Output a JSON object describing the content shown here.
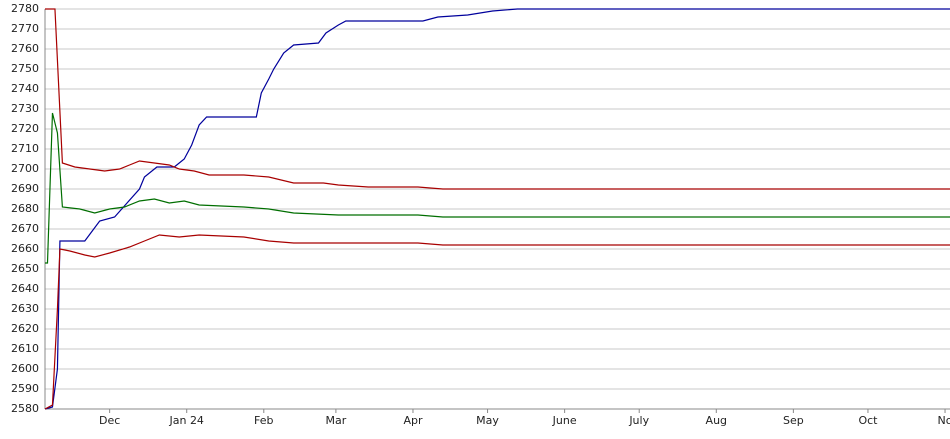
{
  "chart_data": {
    "type": "line",
    "xlim": [
      0,
      364
    ],
    "xticks": [
      {
        "value": 26,
        "label": "Dec"
      },
      {
        "value": 57,
        "label": "Jan 24"
      },
      {
        "value": 88,
        "label": "Feb"
      },
      {
        "value": 117,
        "label": "Mar"
      },
      {
        "value": 148,
        "label": "Apr"
      },
      {
        "value": 178,
        "label": "May"
      },
      {
        "value": 209,
        "label": "June"
      },
      {
        "value": 239,
        "label": "July"
      },
      {
        "value": 270,
        "label": "Aug"
      },
      {
        "value": 301,
        "label": "Sep"
      },
      {
        "value": 331,
        "label": "Oct"
      },
      {
        "value": 362,
        "label": "No"
      }
    ],
    "ylim": [
      2580,
      2780
    ],
    "yticks": [
      2580,
      2590,
      2600,
      2610,
      2620,
      2630,
      2640,
      2650,
      2660,
      2670,
      2680,
      2690,
      2700,
      2710,
      2720,
      2730,
      2740,
      2750,
      2760,
      2770,
      2780
    ],
    "grid": true,
    "series": [
      {
        "color": "#00009c",
        "x": [
          0,
          3,
          5,
          6,
          16,
          22,
          28,
          33,
          38,
          40,
          45,
          52,
          56,
          59,
          62,
          65,
          85,
          87,
          90,
          92,
          96,
          100,
          110,
          113,
          118,
          121,
          152,
          158,
          170,
          180,
          190,
          364
        ],
        "values": [
          2580,
          2581,
          2600,
          2664,
          2664,
          2674,
          2676,
          2683,
          2690,
          2696,
          2701,
          2701,
          2705,
          2712,
          2722,
          2726,
          2726,
          2738,
          2745,
          2750,
          2758,
          2762,
          2763,
          2768,
          2772,
          2774,
          2774,
          2776,
          2777,
          2779,
          2780,
          2780
        ]
      },
      {
        "color": "#a80000",
        "x": [
          0,
          4,
          7,
          12,
          18,
          24,
          30,
          34,
          38,
          44,
          50,
          54,
          60,
          66,
          80,
          90,
          100,
          112,
          118,
          130,
          150,
          160,
          200,
          240,
          280,
          320,
          364
        ],
        "values": [
          2780,
          2780,
          2703,
          2701,
          2700,
          2699,
          2700,
          2702,
          2704,
          2703,
          2702,
          2700,
          2699,
          2697,
          2697,
          2696,
          2693,
          2693,
          2692,
          2691,
          2691,
          2690,
          2690,
          2690,
          2690,
          2690,
          2690
        ]
      },
      {
        "color": "#006e00",
        "x": [
          0,
          1,
          3,
          5,
          7,
          14,
          20,
          26,
          32,
          38,
          44,
          50,
          56,
          62,
          80,
          90,
          100,
          118,
          150,
          160,
          200,
          250,
          300,
          364
        ],
        "values": [
          2653,
          2653,
          2728,
          2718,
          2681,
          2680,
          2678,
          2680,
          2681,
          2684,
          2685,
          2683,
          2684,
          2682,
          2681,
          2680,
          2678,
          2677,
          2677,
          2676,
          2676,
          2676,
          2676,
          2676
        ]
      },
      {
        "color": "#a80000",
        "x": [
          0,
          3,
          5,
          6,
          10,
          16,
          20,
          26,
          34,
          40,
          46,
          54,
          62,
          80,
          90,
          100,
          150,
          160,
          200,
          250,
          300,
          364
        ],
        "values": [
          2580,
          2582,
          2630,
          2660,
          2659,
          2657,
          2656,
          2658,
          2661,
          2664,
          2667,
          2666,
          2667,
          2666,
          2664,
          2663,
          2663,
          2662,
          2662,
          2662,
          2662,
          2662
        ]
      }
    ]
  }
}
